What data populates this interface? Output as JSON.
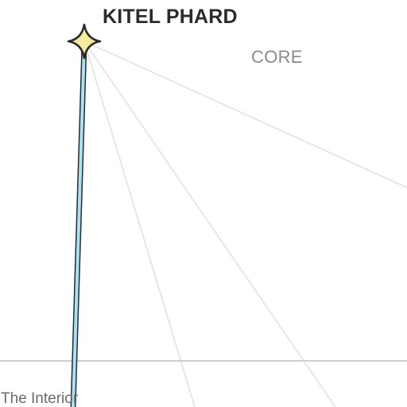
{
  "map": {
    "system": {
      "name": "KITEL PHARD",
      "icon": "four-point-star-icon",
      "color": "#f4eb9e"
    },
    "regions": {
      "core": "CORE",
      "interior": "The Interior"
    },
    "hyperlane": {
      "color": "#a9e1f5"
    },
    "grid_line_color": "#e2e2e2",
    "border_color": "#cfcfcf"
  }
}
